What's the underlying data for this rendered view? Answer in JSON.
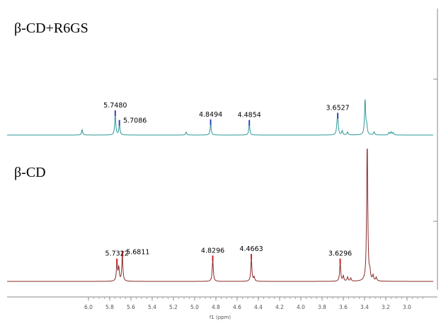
{
  "chart_data": {
    "type": "line",
    "title": "",
    "xlabel": "f1 (ppm)",
    "ylabel": "",
    "x_range": [
      6.1,
      2.9
    ],
    "x_reversed": true,
    "xticks": [
      "6.0",
      "5.8",
      "5.6",
      "5.4",
      "5.2",
      "5.0",
      "4.8",
      "4.6",
      "4.4",
      "4.2",
      "4.0",
      "3.8",
      "3.6",
      "3.4",
      "3.2",
      "3.0"
    ],
    "grid": false,
    "colors": {
      "top_line": "#2e9898",
      "top_peaks": "#3344bb",
      "bottom_line": "#8a2a2a",
      "bottom_peaks": "#cc2222",
      "axis": "#888888"
    },
    "series": [
      {
        "name": "β-CD+R6GS",
        "peaks": [
          {
            "ppm": 6.06,
            "height": 0.09
          },
          {
            "ppm": 5.748,
            "height": 0.34,
            "label": "5.7480"
          },
          {
            "ppm": 5.7086,
            "height": 0.18,
            "label": "5.7086"
          },
          {
            "ppm": 5.08,
            "height": 0.05
          },
          {
            "ppm": 4.8494,
            "height": 0.19,
            "label": "4.8494"
          },
          {
            "ppm": 4.4854,
            "height": 0.18,
            "label": "4.4854"
          },
          {
            "ppm": 3.66,
            "height": 0.1
          },
          {
            "ppm": 3.6527,
            "height": 0.3,
            "label": "3.6527"
          },
          {
            "ppm": 3.61,
            "height": 0.07
          },
          {
            "ppm": 3.56,
            "height": 0.05
          },
          {
            "ppm": 3.395,
            "height": 0.6
          },
          {
            "ppm": 3.38,
            "height": 0.15
          },
          {
            "ppm": 3.31,
            "height": 0.05
          },
          {
            "ppm": 3.17,
            "height": 0.04
          },
          {
            "ppm": 3.15,
            "height": 0.05
          },
          {
            "ppm": 3.13,
            "height": 0.04
          }
        ]
      },
      {
        "name": "β-CD",
        "peaks": [
          {
            "ppm": 5.7322,
            "height": 0.36,
            "label": "5.7322"
          },
          {
            "ppm": 5.715,
            "height": 0.26
          },
          {
            "ppm": 5.6811,
            "height": 0.5,
            "label": "5.6811"
          },
          {
            "ppm": 4.8296,
            "height": 0.42,
            "label": "4.8296"
          },
          {
            "ppm": 4.4663,
            "height": 0.45,
            "label": "4.4663"
          },
          {
            "ppm": 4.44,
            "height": 0.08
          },
          {
            "ppm": 3.6296,
            "height": 0.36,
            "label": "3.6296"
          },
          {
            "ppm": 3.6,
            "height": 0.1
          },
          {
            "ppm": 3.56,
            "height": 0.08
          },
          {
            "ppm": 3.53,
            "height": 0.06
          },
          {
            "ppm": 3.375,
            "height": 2.75
          },
          {
            "ppm": 3.35,
            "height": 0.15
          },
          {
            "ppm": 3.32,
            "height": 0.1
          },
          {
            "ppm": 3.29,
            "height": 0.07
          }
        ]
      }
    ]
  }
}
